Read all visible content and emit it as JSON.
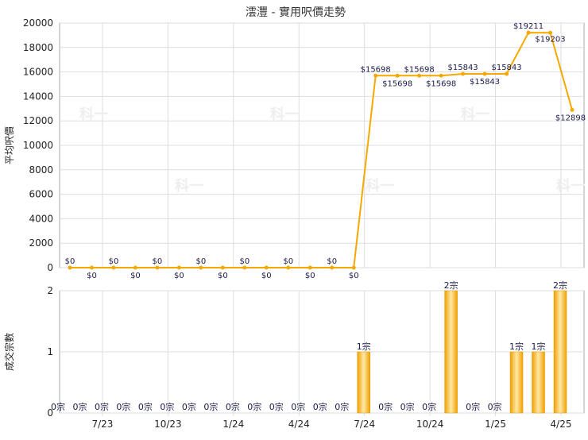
{
  "title": "澐灃 - 實用呎價走勢",
  "watermark": "科一",
  "colors": {
    "line": "#F5A800",
    "bar": "#F5B400",
    "bar_edge": "#E89A00",
    "grid": "#DDDDDD",
    "text": "#222222"
  },
  "chart_data": [
    {
      "type": "line",
      "ylabel": "平均呎價",
      "ylim": [
        0,
        20000
      ],
      "yticks": [
        "0",
        "2000",
        "4000",
        "6000",
        "8000",
        "10000",
        "12000",
        "14000",
        "16000",
        "18000",
        "20000"
      ],
      "x": [
        "2023-05",
        "2023-06",
        "2023-07",
        "2023-08",
        "2023-09",
        "2023-10",
        "2023-11",
        "2023-12",
        "2024-01",
        "2024-02",
        "2024-03",
        "2024-04",
        "2024-05",
        "2024-06",
        "2024-07",
        "2024-08",
        "2024-09",
        "2024-10",
        "2024-11",
        "2024-12",
        "2025-01",
        "2025-02",
        "2025-03",
        "2025-04"
      ],
      "values": [
        0,
        0,
        0,
        0,
        0,
        0,
        0,
        0,
        0,
        0,
        0,
        0,
        0,
        0,
        15698,
        15698,
        15698,
        15698,
        15843,
        15843,
        15843,
        19211,
        19203,
        12898
      ],
      "labels": [
        "$0",
        "$0",
        "$0",
        "$0",
        "$0",
        "$0",
        "$0",
        "$0",
        "$0",
        "$0",
        "$0",
        "$0",
        "$0",
        "$0",
        "$15698",
        "$15698",
        "$15698",
        "$15698",
        "$15843",
        "$15843",
        "$15843",
        "$19211",
        "$19203",
        "$12898"
      ]
    },
    {
      "type": "bar",
      "ylabel": "成交宗數",
      "ylim": [
        0,
        2
      ],
      "yticks": [
        "0",
        "1",
        "2"
      ],
      "x": [
        "2023-05",
        "2023-06",
        "2023-07",
        "2023-08",
        "2023-09",
        "2023-10",
        "2023-11",
        "2023-12",
        "2024-01",
        "2024-02",
        "2024-03",
        "2024-04",
        "2024-05",
        "2024-06",
        "2024-07",
        "2024-08",
        "2024-09",
        "2024-10",
        "2024-11",
        "2024-12",
        "2025-01",
        "2025-02",
        "2025-03",
        "2025-04"
      ],
      "values": [
        0,
        0,
        0,
        0,
        0,
        0,
        0,
        0,
        0,
        0,
        0,
        0,
        0,
        0,
        1,
        0,
        0,
        0,
        2,
        0,
        0,
        1,
        1,
        2
      ],
      "labels": [
        "0宗",
        "0宗",
        "0宗",
        "0宗",
        "0宗",
        "0宗",
        "0宗",
        "0宗",
        "0宗",
        "0宗",
        "0宗",
        "0宗",
        "0宗",
        "0宗",
        "1宗",
        "0宗",
        "0宗",
        "0宗",
        "2宗",
        "0宗",
        "0宗",
        "1宗",
        "1宗",
        "2宗"
      ],
      "xtick_labels": [
        {
          "index": 2,
          "label": "7/23"
        },
        {
          "index": 5,
          "label": "10/23"
        },
        {
          "index": 8,
          "label": "1/24"
        },
        {
          "index": 11,
          "label": "4/24"
        },
        {
          "index": 14,
          "label": "7/24"
        },
        {
          "index": 17,
          "label": "10/24"
        },
        {
          "index": 20,
          "label": "1/25"
        },
        {
          "index": 23,
          "label": "4/25"
        }
      ]
    }
  ]
}
